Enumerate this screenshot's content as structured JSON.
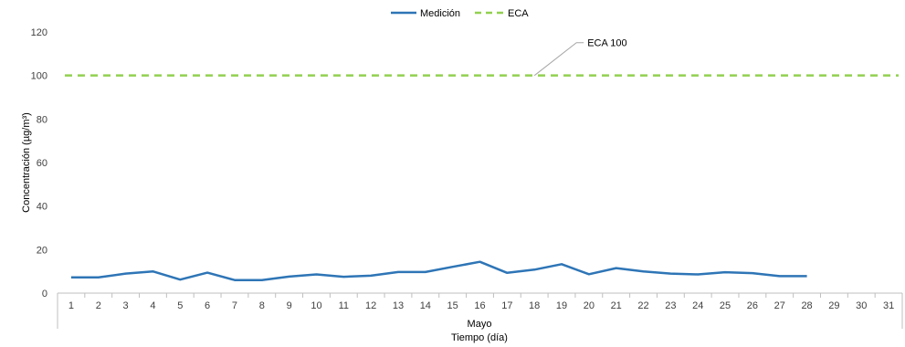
{
  "chart_data": {
    "type": "line",
    "x": [
      "1",
      "2",
      "3",
      "4",
      "5",
      "6",
      "7",
      "8",
      "9",
      "10",
      "11",
      "12",
      "13",
      "14",
      "15",
      "16",
      "17",
      "18",
      "19",
      "20",
      "21",
      "22",
      "23",
      "24",
      "25",
      "26",
      "27",
      "28",
      "29",
      "30",
      "31"
    ],
    "group_label": "Mayo",
    "xlabel": "Tiempo (día)",
    "ylabel": "Concentración  (µg/m³)",
    "ylim": [
      0,
      120
    ],
    "yticks": [
      0,
      20,
      40,
      60,
      80,
      100,
      120
    ],
    "grid": false,
    "legend_position": "top-center",
    "series": [
      {
        "name": "Medición",
        "color": "#2e75b6",
        "style": "solid",
        "values": [
          7.2,
          7.2,
          9.0,
          10.0,
          6.2,
          9.4,
          6.0,
          6.0,
          7.6,
          8.6,
          7.5,
          8.0,
          9.7,
          9.7,
          12.1,
          14.4,
          9.3,
          10.8,
          13.3,
          8.7,
          11.5,
          10.0,
          9.0,
          8.6,
          9.6,
          9.2,
          7.8,
          7.8,
          null,
          null,
          null
        ]
      },
      {
        "name": "ECA",
        "color": "#92d050",
        "style": "dashed",
        "values": [
          100,
          100,
          100,
          100,
          100,
          100,
          100,
          100,
          100,
          100,
          100,
          100,
          100,
          100,
          100,
          100,
          100,
          100,
          100,
          100,
          100,
          100,
          100,
          100,
          100,
          100,
          100,
          100,
          100,
          100,
          100
        ]
      }
    ],
    "annotation": {
      "text": "ECA  100",
      "category": "18",
      "value": 100
    }
  }
}
